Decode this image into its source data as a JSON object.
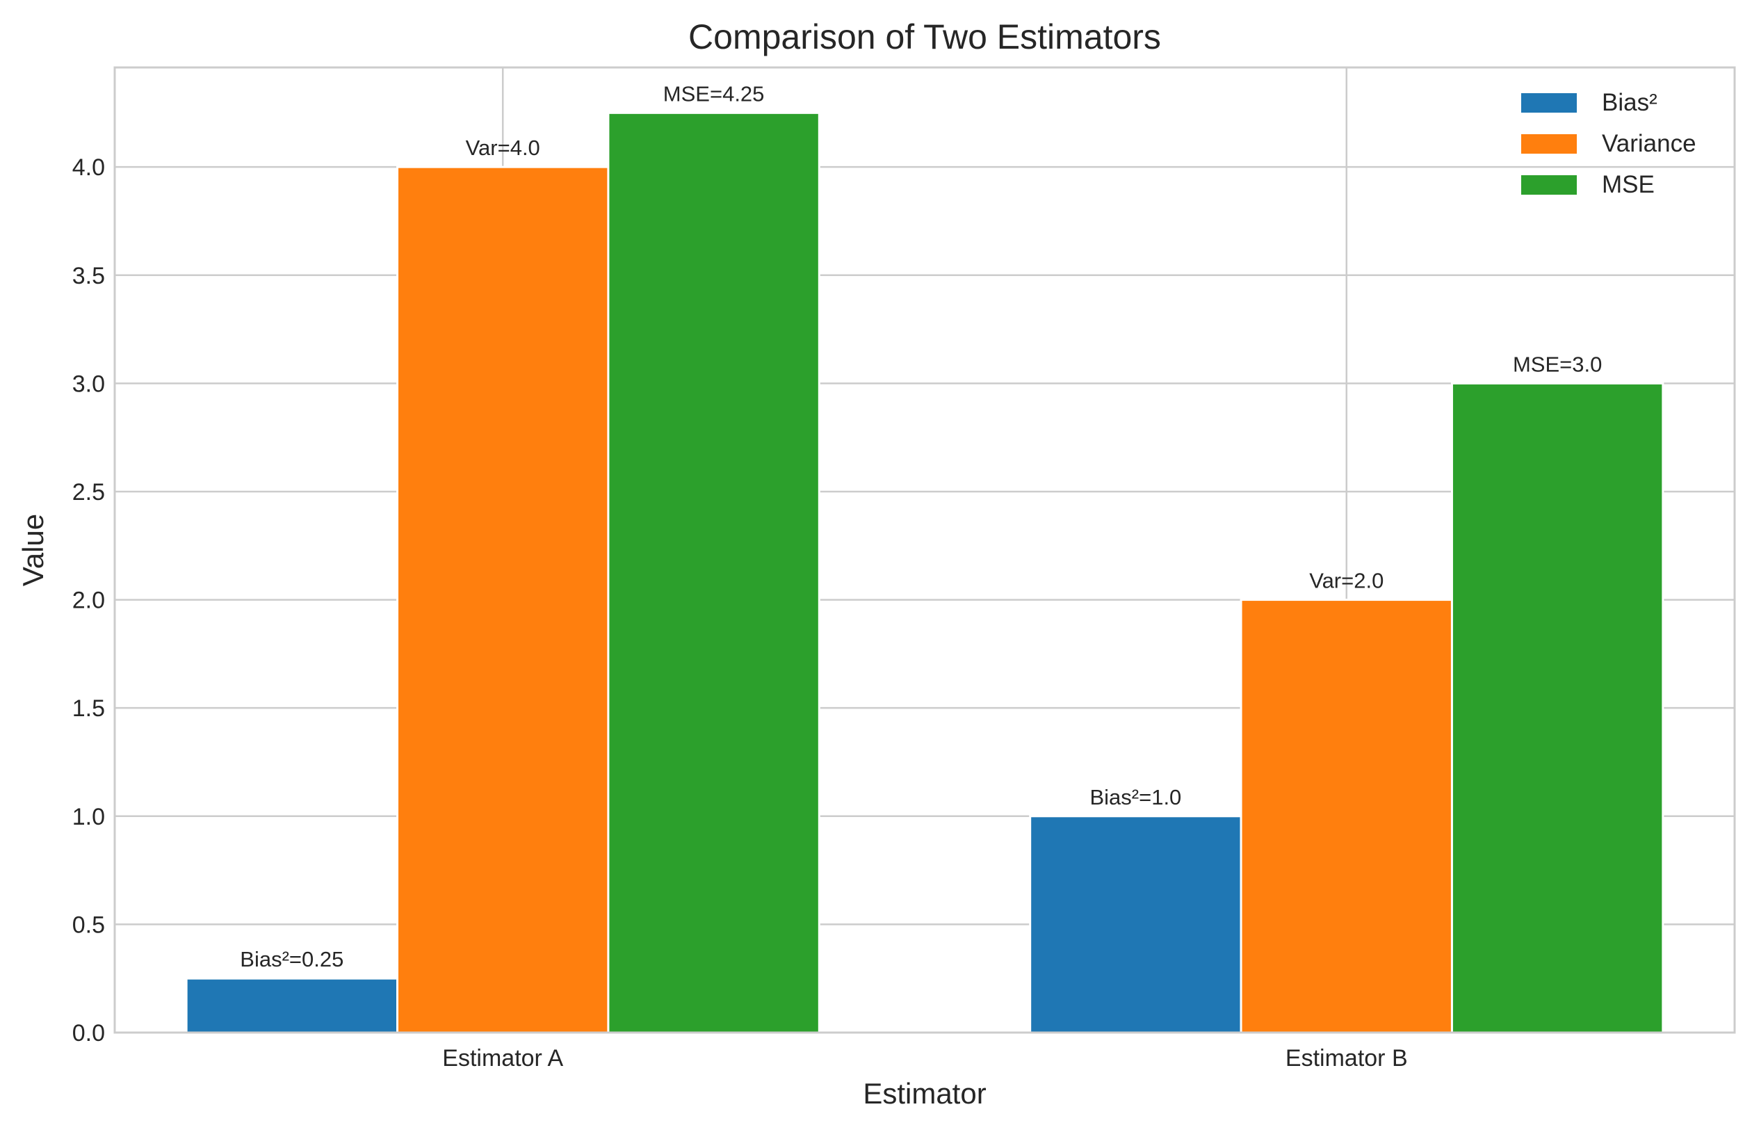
{
  "chart_data": {
    "type": "bar",
    "title": "Comparison of Two Estimators",
    "xlabel": "Estimator",
    "ylabel": "Value",
    "categories": [
      "Estimator A",
      "Estimator B"
    ],
    "series": [
      {
        "name": "Bias²",
        "color": "#1f77b4",
        "values": [
          0.25,
          1.0
        ],
        "labels": [
          "Bias²=0.25",
          "Bias²=1.0"
        ]
      },
      {
        "name": "Variance",
        "color": "#ff7f0e",
        "values": [
          4.0,
          2.0
        ],
        "labels": [
          "Var=4.0",
          "Var=2.0"
        ]
      },
      {
        "name": "MSE",
        "color": "#2ca02c",
        "values": [
          4.25,
          3.0
        ],
        "labels": [
          "MSE=4.25",
          "MSE=3.0"
        ]
      }
    ],
    "ylim": [
      0,
      4.46
    ],
    "yticks": [
      0.0,
      0.5,
      1.0,
      1.5,
      2.0,
      2.5,
      3.0,
      3.5,
      4.0
    ],
    "ytick_labels": [
      "0.0",
      "0.5",
      "1.0",
      "1.5",
      "2.0",
      "2.5",
      "3.0",
      "3.5",
      "4.0"
    ],
    "grid": true,
    "legend_position": "top-right"
  }
}
